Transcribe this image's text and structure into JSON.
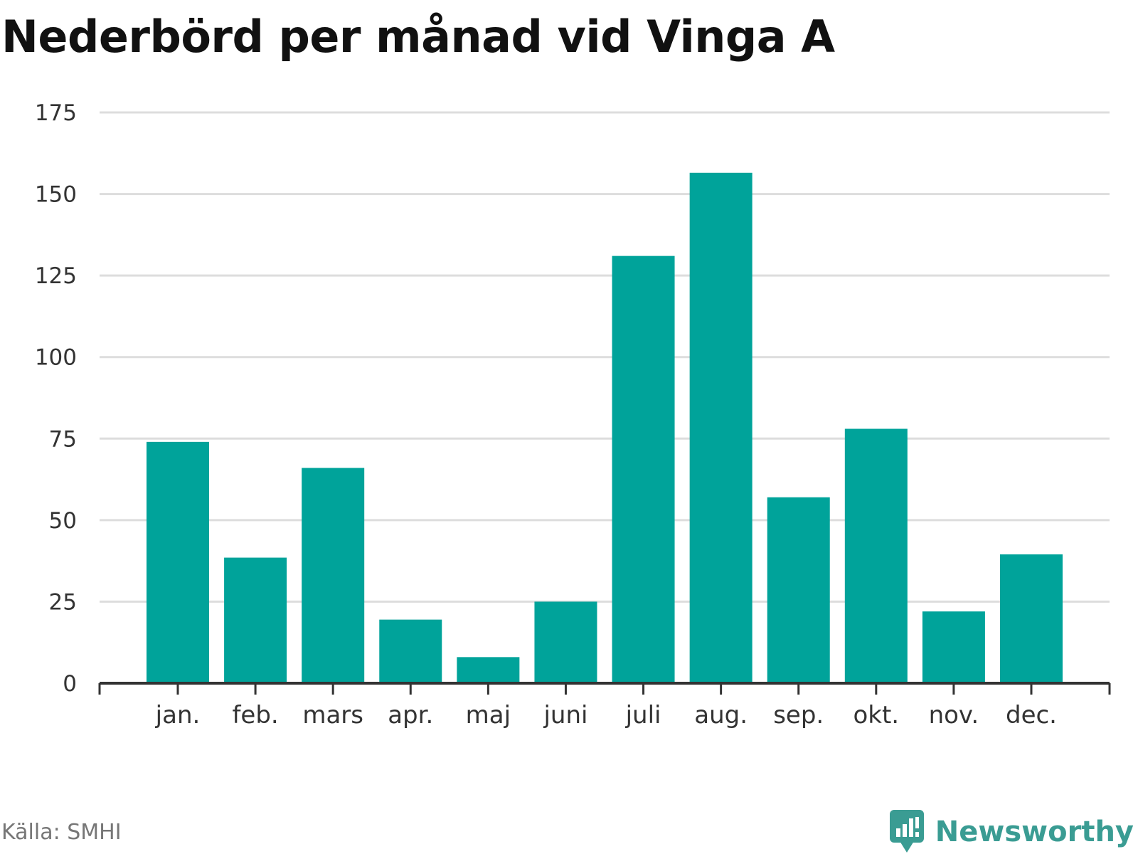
{
  "title": "Nederbörd per månad vid Vinga A",
  "source": "Källa: SMHI",
  "brand": {
    "name": "Newsworthy",
    "icon": "newsworthy-logo-icon",
    "color": "#3a9c93"
  },
  "colors": {
    "bar": "#00a39a",
    "grid": "#dddddd",
    "axis": "#333333"
  },
  "chart_data": {
    "type": "bar",
    "title": "Nederbörd per månad vid Vinga A",
    "xlabel": "",
    "ylabel": "",
    "categories": [
      "jan.",
      "feb.",
      "mars",
      "apr.",
      "maj",
      "juni",
      "juli",
      "aug.",
      "sep.",
      "okt.",
      "nov.",
      "dec."
    ],
    "values": [
      74,
      38.5,
      66,
      19.5,
      8,
      25,
      131,
      156.5,
      57,
      78,
      22,
      39.5
    ],
    "ylim": [
      0,
      175
    ],
    "yticks": [
      0,
      25,
      50,
      75,
      100,
      125,
      150,
      175
    ],
    "grid": true,
    "legend": "none"
  }
}
